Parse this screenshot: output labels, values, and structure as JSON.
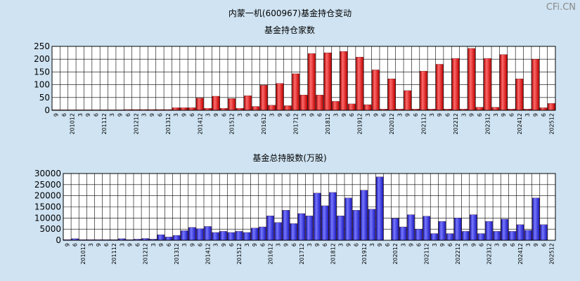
{
  "header": {
    "title": "内蒙一机(600967)基金持仓变动",
    "watermark": "CFi.CN"
  },
  "chart_data": [
    {
      "type": "bar",
      "title": "基金持仓家数",
      "ylim": [
        0,
        250
      ],
      "yticks": [
        0,
        50,
        100,
        150,
        200,
        250
      ],
      "grid": true,
      "categories": [
        "9",
        "6",
        "201012",
        "3",
        "9",
        "6",
        "201112",
        "3",
        "9",
        "6",
        "201212",
        "3",
        "9",
        "6",
        "201312",
        "3",
        "9",
        "6",
        "201412",
        "3",
        "9",
        "6",
        "201512",
        "3",
        "9",
        "6",
        "201612",
        "3",
        "9",
        "6",
        "201712",
        "3",
        "9",
        "6",
        "201812",
        "3",
        "9",
        "6",
        "201912",
        "3",
        "9",
        "6",
        "202012",
        "3",
        "9",
        "6",
        "202112",
        "3",
        "9",
        "6",
        "202212",
        "3",
        "9",
        "6",
        "202312",
        "3",
        "9",
        "6",
        "202412",
        "3",
        "9",
        "6",
        "202512"
      ],
      "values": [
        2,
        2,
        2,
        2,
        2,
        2,
        2,
        2,
        2,
        3,
        3,
        3,
        3,
        3,
        3,
        10,
        10,
        10,
        48,
        8,
        55,
        8,
        46,
        8,
        57,
        15,
        98,
        20,
        105,
        18,
        143,
        60,
        222,
        60,
        225,
        35,
        230,
        25,
        208,
        22,
        158,
        5,
        123,
        5,
        77,
        5,
        153,
        5,
        180,
        5,
        203,
        5,
        242,
        12,
        203,
        12,
        218,
        5,
        123,
        5,
        200,
        10,
        27
      ]
    },
    {
      "type": "bar",
      "title": "基金总持股数(万股)",
      "ylim": [
        0,
        30000
      ],
      "yticks": [
        0,
        5000,
        10000,
        15000,
        20000,
        25000,
        30000
      ],
      "grid": true,
      "categories": [
        "9",
        "6",
        "201012",
        "3",
        "9",
        "6",
        "201112",
        "3",
        "9",
        "6",
        "201212",
        "3",
        "9",
        "6",
        "201312",
        "3",
        "9",
        "6",
        "201412",
        "3",
        "9",
        "6",
        "201512",
        "3",
        "9",
        "6",
        "201612",
        "3",
        "9",
        "6",
        "201712",
        "3",
        "9",
        "6",
        "201812",
        "3",
        "9",
        "6",
        "201912",
        "3",
        "9",
        "6",
        "202012",
        "3",
        "9",
        "6",
        "202112",
        "3",
        "9",
        "6",
        "202212",
        "3",
        "9",
        "6",
        "202312",
        "3",
        "9",
        "6",
        "202412",
        "3",
        "9",
        "6",
        "202512"
      ],
      "values": [
        300,
        700,
        300,
        300,
        300,
        300,
        300,
        700,
        300,
        500,
        800,
        500,
        2500,
        1500,
        2200,
        4300,
        5800,
        5200,
        6200,
        3500,
        4000,
        3500,
        4000,
        3500,
        5500,
        6000,
        11000,
        8000,
        13500,
        7500,
        12000,
        11000,
        21200,
        15500,
        21500,
        11000,
        19000,
        13500,
        22500,
        14000,
        28500,
        0,
        9800,
        6000,
        11500,
        5000,
        10800,
        3000,
        8500,
        3000,
        10000,
        4000,
        11500,
        3000,
        8500,
        4000,
        9500,
        4000,
        7000,
        4500,
        19000,
        7000,
        0
      ]
    }
  ]
}
